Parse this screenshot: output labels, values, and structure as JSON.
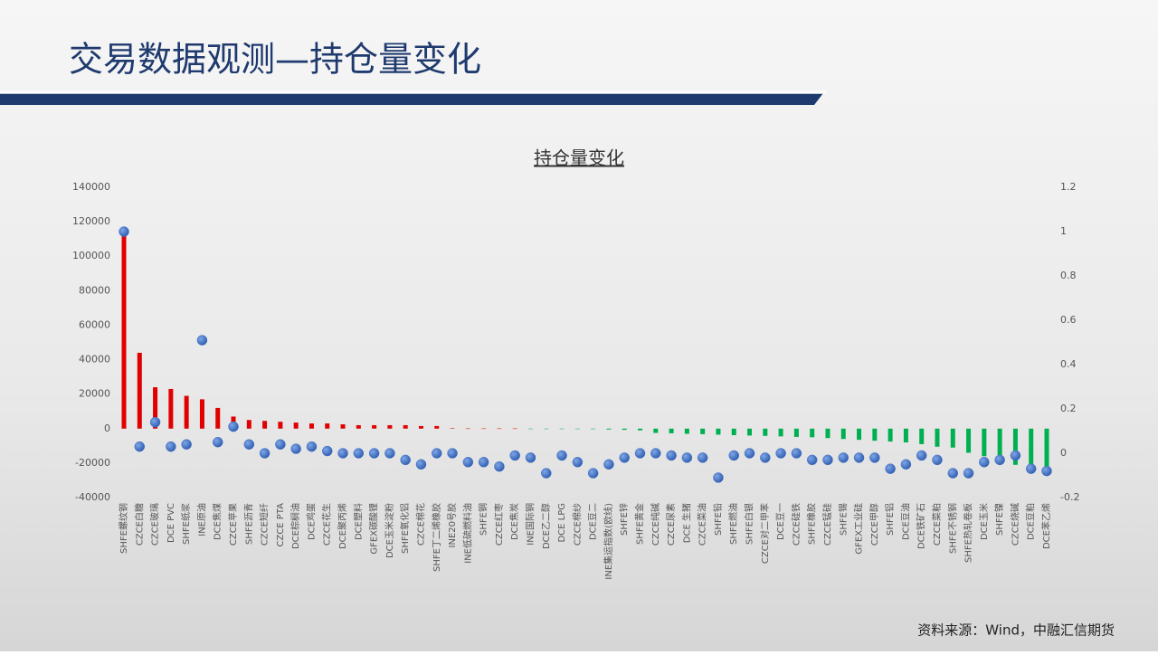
{
  "header": {
    "title": "交易数据观测—持仓量变化"
  },
  "chart_data": {
    "type": "bar",
    "title": "持仓量变化",
    "categories": [
      "SHFE螺纹钢",
      "CZCE白糖",
      "CZCE玻璃",
      "DCE PVC",
      "SHFE纸浆",
      "INE原油",
      "DCE焦煤",
      "CZCE苹果",
      "SHFE沥青",
      "CZCE短纤",
      "CZCE PTA",
      "DCE棕榈油",
      "DCE鸡蛋",
      "CZCE花生",
      "DCE聚丙烯",
      "DCE塑料",
      "GFEX碳酸锂",
      "DCE玉米淀粉",
      "SHFE氧化铝",
      "CZCE棉花",
      "SHFE丁二烯橡胶",
      "INE20号胶",
      "INE低硫燃料油",
      "SHFE铜",
      "CZCE红枣",
      "DCE焦炭",
      "INE国际铜",
      "DCE乙二醇",
      "DCE LPG",
      "CZCE棉纱",
      "DCE豆二",
      "INE集运指数(欧线)",
      "SHFE锌",
      "SHFE黄金",
      "CZCE纯碱",
      "CZCE尿素",
      "DCE 生猪",
      "CZCE菜油",
      "SHFE铅",
      "SHFE燃油",
      "SHFE白银",
      "CZCE对二甲苯",
      "DCE豆一",
      "CZCE硅铁",
      "SHFE橡胶",
      "CZCE锰硅",
      "SHFE锡",
      "GFEX工业硅",
      "CZCE甲醇",
      "SHFE铝",
      "DCE豆油",
      "DCE铁矿石",
      "CZCE菜粕",
      "SHFE不锈钢",
      "SHFE热轧卷板",
      "DCE玉米",
      "SHFE镍",
      "CZCE烧碱",
      "DCE豆粕",
      "DCE苯乙烯"
    ],
    "series": [
      {
        "type": "bar",
        "positive_color": "#e00000",
        "negative_color": "#00b050",
        "values": [
          115000,
          44000,
          24000,
          23000,
          19000,
          17000,
          12000,
          7000,
          5000,
          4500,
          4000,
          3500,
          3000,
          3000,
          2500,
          2000,
          2000,
          2000,
          2000,
          1500,
          1500,
          200,
          100,
          100,
          100,
          100,
          -100,
          -100,
          -100,
          -200,
          -300,
          -500,
          -700,
          -1000,
          -2500,
          -2700,
          -3000,
          -3200,
          -3500,
          -3800,
          -4000,
          -4200,
          -4500,
          -4800,
          -5000,
          -5500,
          -6000,
          -6500,
          -7000,
          -7500,
          -8000,
          -9000,
          -10500,
          -11000,
          -14000,
          -16000,
          -17500,
          -21000,
          -22000,
          -27000
        ]
      },
      {
        "type": "scatter",
        "axis": "y2",
        "color": "#4472c4",
        "values": [
          1.0,
          0.03,
          0.14,
          0.03,
          0.04,
          0.51,
          0.05,
          0.12,
          0.04,
          0.0,
          0.04,
          0.02,
          0.03,
          0.01,
          0.0,
          0.0,
          0.0,
          0.0,
          -0.03,
          -0.05,
          0.0,
          0.0,
          -0.04,
          -0.04,
          -0.06,
          -0.01,
          -0.02,
          -0.09,
          -0.01,
          -0.04,
          -0.09,
          -0.05,
          -0.02,
          0.0,
          0.0,
          -0.01,
          -0.02,
          -0.02,
          -0.11,
          -0.01,
          0.0,
          -0.02,
          0.0,
          0.0,
          -0.03,
          -0.03,
          -0.02,
          -0.02,
          -0.02,
          -0.07,
          -0.05,
          -0.01,
          -0.03,
          -0.09,
          -0.09,
          -0.04,
          -0.03,
          -0.01,
          -0.07,
          -0.08
        ]
      }
    ],
    "ylim": [
      -40000,
      140000
    ],
    "yticks": [
      -40000,
      -20000,
      0,
      20000,
      40000,
      60000,
      80000,
      100000,
      120000,
      140000
    ],
    "y2lim": [
      -0.2,
      1.2
    ],
    "y2ticks": [
      -0.2,
      0,
      0.2,
      0.4,
      0.6,
      0.8,
      1,
      1.2
    ],
    "grid": false
  },
  "footer": {
    "source": "资料来源：Wind，中融汇信期货"
  }
}
